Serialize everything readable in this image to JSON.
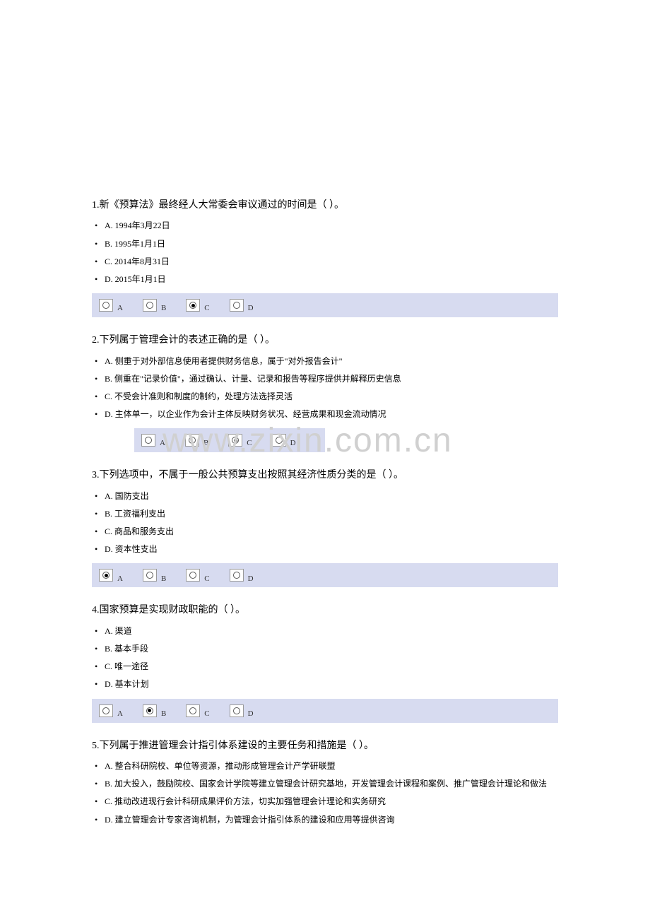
{
  "watermark": "www.zixin.com.cn",
  "questions": [
    {
      "title": "1.新《预算法》最终经人大常委会审议通过的时间是（ ）。",
      "options": [
        "A. 1994年3月22日",
        "B. 1995年1月1日",
        "C. 2014年8月31日",
        "D. 2015年1月1日"
      ],
      "radio_labels": [
        "A",
        "B",
        "C",
        "D"
      ],
      "selected": 2,
      "narrow": false
    },
    {
      "title": "2.下列属于管理会计的表述正确的是（ ）。",
      "options": [
        "A. 侧重于对外部信息使用者提供财务信息，属于\"对外报告会计\"",
        "B. 侧重在\"记录价值\"，通过确认、计量、记录和报告等程序提供并解释历史信息",
        "C. 不受会计准则和制度的制约，处理方法选择灵活",
        "D. 主体单一，以企业作为会计主体反映财务状况、经营成果和现金流动情况"
      ],
      "radio_labels": [
        "A",
        "B",
        "C",
        "D"
      ],
      "selected": 2,
      "narrow": true
    },
    {
      "title": "3.下列选项中，不属于一般公共预算支出按照其经济性质分类的是（ ）。",
      "options": [
        "A. 国防支出",
        "B. 工资福利支出",
        "C. 商品和服务支出",
        "D. 资本性支出"
      ],
      "radio_labels": [
        "A",
        "B",
        "C",
        "D"
      ],
      "selected": 0,
      "narrow": false
    },
    {
      "title": "4.国家预算是实现财政职能的（ ）。",
      "options": [
        "A. 渠道",
        "B. 基本手段",
        "C. 唯一途径",
        "D. 基本计划"
      ],
      "radio_labels": [
        "A",
        "B",
        "C",
        "D"
      ],
      "selected": 1,
      "narrow": false
    },
    {
      "title": "5.下列属于推进管理会计指引体系建设的主要任务和措施是（ ）。",
      "options": [
        "A. 整合科研院校、单位等资源，推动形成管理会计产学研联盟",
        "B. 加大投入，鼓励院校、国家会计学院等建立管理会计研究基地，开发管理会计课程和案例、推广管理会计理论和做法",
        "C. 推动改进现行会计科研成果评价方法，切实加强管理会计理论和实务研究",
        "D. 建立管理会计专家咨询机制，为管理会计指引体系的建设和应用等提供咨询"
      ],
      "radio_labels": [
        "A",
        "B",
        "C",
        "D"
      ],
      "selected": null,
      "narrow": false
    }
  ]
}
